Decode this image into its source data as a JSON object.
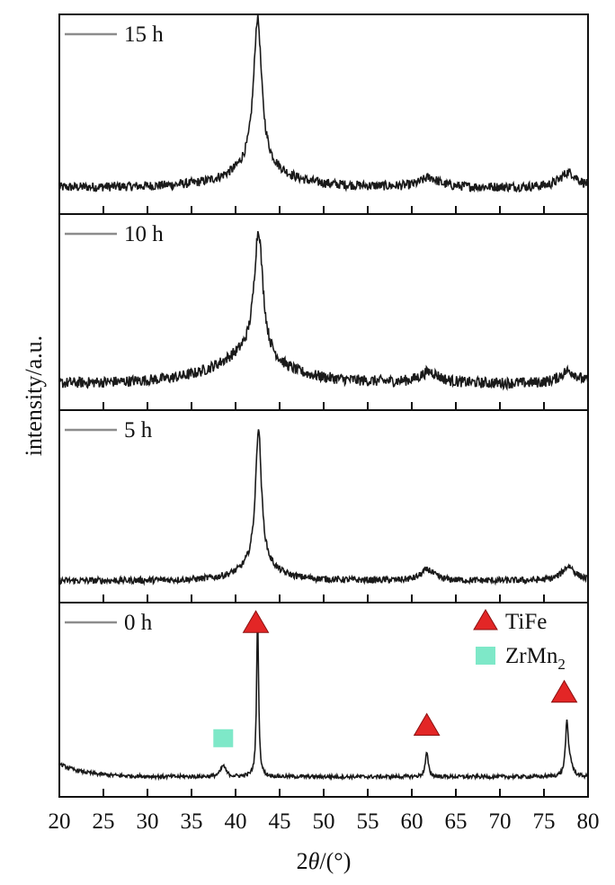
{
  "chart_data": {
    "type": "line",
    "ylabel": "intensity/a.u.",
    "xlabel_prefix": "2",
    "xlabel_theta": "θ",
    "xlabel_suffix": "/(°)",
    "xlim": [
      20,
      80
    ],
    "xticks": [
      20,
      25,
      30,
      35,
      40,
      45,
      50,
      55,
      60,
      65,
      70,
      75,
      80
    ],
    "grid": false,
    "line_color": "#1a1a1a",
    "legend_line_color": "#8c8c8c",
    "panels": [
      {
        "label": "15 h",
        "baseline": 0.12,
        "noise": 0.025,
        "peaks": [
          {
            "x": 42.5,
            "height": 0.78,
            "width": 0.55
          },
          {
            "x": 42.5,
            "height": 0.12,
            "width": 3.5
          },
          {
            "x": 62.0,
            "height": 0.05,
            "width": 1.2
          },
          {
            "x": 77.8,
            "height": 0.08,
            "width": 1.2
          }
        ]
      },
      {
        "label": "10 h",
        "baseline": 0.12,
        "noise": 0.03,
        "peaks": [
          {
            "x": 42.6,
            "height": 0.68,
            "width": 0.6
          },
          {
            "x": 41.5,
            "height": 0.16,
            "width": 4.5
          },
          {
            "x": 62.0,
            "height": 0.06,
            "width": 1.3
          },
          {
            "x": 77.8,
            "height": 0.07,
            "width": 1.2
          }
        ]
      },
      {
        "label": "5 h",
        "baseline": 0.1,
        "noise": 0.018,
        "peaks": [
          {
            "x": 42.6,
            "height": 0.74,
            "width": 0.4
          },
          {
            "x": 42.6,
            "height": 0.1,
            "width": 2.2
          },
          {
            "x": 61.8,
            "height": 0.06,
            "width": 0.9
          },
          {
            "x": 77.8,
            "height": 0.08,
            "width": 0.9
          }
        ]
      },
      {
        "label": "0 h",
        "baseline": 0.09,
        "noise": 0.01,
        "decay": {
          "amp": 0.07,
          "rate": 0.35
        },
        "peaks": [
          {
            "x": 38.6,
            "height": 0.06,
            "width": 0.35
          },
          {
            "x": 42.5,
            "height": 0.86,
            "width": 0.14
          },
          {
            "x": 61.7,
            "height": 0.13,
            "width": 0.2
          },
          {
            "x": 77.6,
            "height": 0.28,
            "width": 0.2
          },
          {
            "x": 78.0,
            "height": 0.06,
            "width": 0.3
          }
        ],
        "markers": [
          {
            "x": 38.6,
            "y": 0.3,
            "shape": "square",
            "phase": "ZrMn2"
          },
          {
            "x": 42.3,
            "y": 0.93,
            "shape": "triangle",
            "phase": "TiFe"
          },
          {
            "x": 61.7,
            "y": 0.37,
            "shape": "triangle",
            "phase": "TiFe"
          },
          {
            "x": 77.3,
            "y": 0.55,
            "shape": "triangle",
            "phase": "TiFe"
          }
        ]
      }
    ],
    "phase_legend": [
      {
        "name": "TiFe",
        "shape": "triangle",
        "color": "#e32626"
      },
      {
        "name": "ZrMn",
        "subscript": "2",
        "shape": "square",
        "color": "#7ee8c8"
      }
    ]
  }
}
